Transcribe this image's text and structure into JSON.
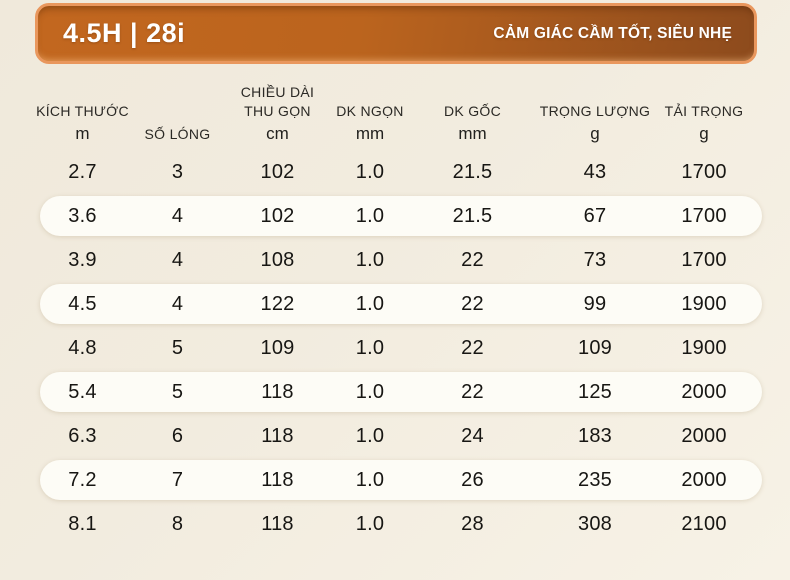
{
  "page_bg": "#f2ecdf",
  "header_bar": {
    "model": "4.5H | 28i",
    "tagline": "CẢM GIÁC CẦM TỐT, SIÊU NHẸ",
    "bg_left": "#c2671f",
    "bg_right": "#8d4b1d",
    "border_color": "#e9975d",
    "text_color": "#ffffff"
  },
  "table": {
    "columns": [
      {
        "label_lines": [
          "KÍCH THƯỚC"
        ],
        "unit": "m"
      },
      {
        "label_lines": [
          "SỐ LÓNG"
        ],
        "unit": ""
      },
      {
        "label_lines": [
          "CHIỀU DÀI",
          "THU GỌN"
        ],
        "unit": "cm"
      },
      {
        "label_lines": [
          "DK NGỌN"
        ],
        "unit": "mm"
      },
      {
        "label_lines": [
          "DK GỐC"
        ],
        "unit": "mm"
      },
      {
        "label_lines": [
          "TRỌNG LƯỢNG"
        ],
        "unit": "g"
      },
      {
        "label_lines": [
          "TẢI TRỌNG"
        ],
        "unit": "g"
      }
    ],
    "rows": [
      [
        "2.7",
        "3",
        "102",
        "1.0",
        "21.5",
        "43",
        "1700"
      ],
      [
        "3.6",
        "4",
        "102",
        "1.0",
        "21.5",
        "67",
        "1700"
      ],
      [
        "3.9",
        "4",
        "108",
        "1.0",
        "22",
        "73",
        "1700"
      ],
      [
        "4.5",
        "4",
        "122",
        "1.0",
        "22",
        "99",
        "1900"
      ],
      [
        "4.8",
        "5",
        "109",
        "1.0",
        "22",
        "109",
        "1900"
      ],
      [
        "5.4",
        "5",
        "118",
        "1.0",
        "22",
        "125",
        "2000"
      ],
      [
        "6.3",
        "6",
        "118",
        "1.0",
        "24",
        "183",
        "2000"
      ],
      [
        "7.2",
        "7",
        "118",
        "1.0",
        "26",
        "235",
        "2000"
      ],
      [
        "8.1",
        "8",
        "118",
        "1.0",
        "28",
        "308",
        "2100"
      ]
    ],
    "highlight_rows": [
      1,
      3,
      5,
      7
    ],
    "row_highlight_color": "#fdfcf6"
  }
}
